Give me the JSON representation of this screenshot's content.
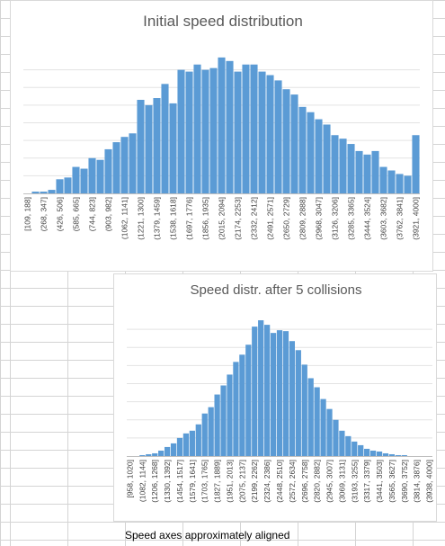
{
  "note": "Speed axes approximately aligned",
  "colors": {
    "bar": "#5b9bd5",
    "title": "#595959",
    "gridline": "#e3e3e3"
  },
  "chart_data": [
    {
      "type": "bar",
      "title": "Initial speed distribution",
      "grid": true,
      "ylim": [
        0,
        80
      ],
      "categories": [
        "[109, 188]",
        "(188, 268]",
        "(268, 347]",
        "(347, 426]",
        "(426, 506]",
        "(506, 585]",
        "(585, 665]",
        "(665, 744]",
        "(744, 823]",
        "(823, 903]",
        "(903, 982]",
        "(982, 1062]",
        "(1062, 1141]",
        "(1141, 1221]",
        "(1221, 1300]",
        "(1300, 1379]",
        "(1379, 1459]",
        "(1459, 1538]",
        "(1538, 1618]",
        "(1618, 1697]",
        "(1697, 1776]",
        "(1776, 1856]",
        "(1856, 1935]",
        "(1935, 2015]",
        "(2015, 2094]",
        "(2094, 2174]",
        "(2174, 2253]",
        "(2253, 2332]",
        "(2332, 2412]",
        "(2412, 2491]",
        "(2491, 2571]",
        "(2571, 2650]",
        "(2650, 2729]",
        "(2729, 2809]",
        "(2809, 2888]",
        "(2888, 2968]",
        "(2968, 3047]",
        "(3047, 3126]",
        "(3126, 3206]",
        "(3206, 3285]",
        "(3285, 3365]",
        "(3365, 3444]",
        "(3444, 3524]",
        "(3524, 3603]",
        "(3603, 3682]",
        "(3682, 3762]",
        "(3762, 3841]",
        "(3841, 3921]",
        "(3921, 4000]"
      ],
      "tick_labels": [
        "[109, 188]",
        "(268, 347]",
        "(426, 506]",
        "(585, 665]",
        "(744, 823]",
        "(903, 982]",
        "(1062, 1141]",
        "(1221, 1300]",
        "(1379, 1459]",
        "(1538, 1618]",
        "(1697, 1776]",
        "(1856, 1935]",
        "(2015, 2094]",
        "(2174, 2253]",
        "(2332, 2412]",
        "(2491, 2571]",
        "(2650, 2729]",
        "(2809, 2888]",
        "(2968, 3047]",
        "(3126, 3206]",
        "(3285, 3365]",
        "(3444, 3524]",
        "(3603, 3682]",
        "(3762, 3841]",
        "(3921, 4000]"
      ],
      "values": [
        0,
        1,
        1,
        2,
        8,
        9,
        15,
        14,
        20,
        19,
        25,
        29,
        32,
        34,
        53,
        50,
        54,
        62,
        51,
        70,
        69,
        73,
        70,
        71,
        77,
        75,
        69,
        73,
        73,
        69,
        67,
        64,
        59,
        56,
        49,
        46,
        42,
        39,
        33,
        31,
        28,
        24,
        22,
        24,
        15,
        13,
        11,
        10,
        33
      ]
    },
    {
      "type": "bar",
      "title": "Speed distr. after 5 collisions",
      "grid": true,
      "ylim": [
        0,
        160
      ],
      "categories": [
        "[958, 1020]",
        "(1020, 1082]",
        "(1082, 1144]",
        "(1144, 1206]",
        "(1206, 1268]",
        "(1268, 1330]",
        "(1330, 1392]",
        "(1392, 1454]",
        "(1454, 1517]",
        "(1517, 1579]",
        "(1579, 1641]",
        "(1641, 1703]",
        "(1703, 1765]",
        "(1765, 1827]",
        "(1827, 1889]",
        "(1889, 1951]",
        "(1951, 2013]",
        "(2013, 2075]",
        "(2075, 2137]",
        "(2137, 2199]",
        "(2199, 2262]",
        "(2262, 2324]",
        "(2324, 2386]",
        "(2386, 2448]",
        "(2448, 2510]",
        "(2510, 2572]",
        "(2572, 2634]",
        "(2634, 2696]",
        "(2696, 2758]",
        "(2758, 2820]",
        "(2820, 2882]",
        "(2882, 2945]",
        "(2945, 3007]",
        "(3007, 3069]",
        "(3069, 3131]",
        "(3131, 3193]",
        "(3193, 3255]",
        "(3255, 3317]",
        "(3317, 3379]",
        "(3379, 3441]",
        "(3441, 3503]",
        "(3503, 3565]",
        "(3565, 3627]",
        "(3627, 3690]",
        "(3690, 3752]",
        "(3752, 3814]",
        "(3814, 3876]",
        "(3876, 3938]",
        "(3938, 4000]"
      ],
      "tick_labels": [
        "[958, 1020]",
        "(1082, 1144]",
        "(1206, 1268]",
        "(1330, 1392]",
        "(1454, 1517]",
        "(1579, 1641]",
        "(1703, 1765]",
        "(1827, 1889]",
        "(1951, 2013]",
        "(2075, 2137]",
        "(2199, 2262]",
        "(2324, 2386]",
        "(2448, 2510]",
        "(2572, 2634]",
        "(2696, 2758]",
        "(2820, 2882]",
        "(2945, 3007]",
        "(3069, 3131]",
        "(3193, 3255]",
        "(3317, 3379]",
        "(3441, 3503]",
        "(3565, 3627]",
        "(3690, 3752]",
        "(3814, 3876]",
        "(3938, 4000]"
      ],
      "values": [
        0,
        0,
        1,
        2,
        3,
        6,
        10,
        14,
        20,
        25,
        28,
        35,
        47,
        54,
        68,
        78,
        90,
        104,
        112,
        123,
        143,
        150,
        145,
        136,
        139,
        138,
        127,
        117,
        101,
        86,
        76,
        63,
        52,
        40,
        28,
        22,
        16,
        12,
        8,
        6,
        5,
        3,
        2,
        1,
        1,
        0,
        0,
        0,
        0
      ]
    }
  ]
}
